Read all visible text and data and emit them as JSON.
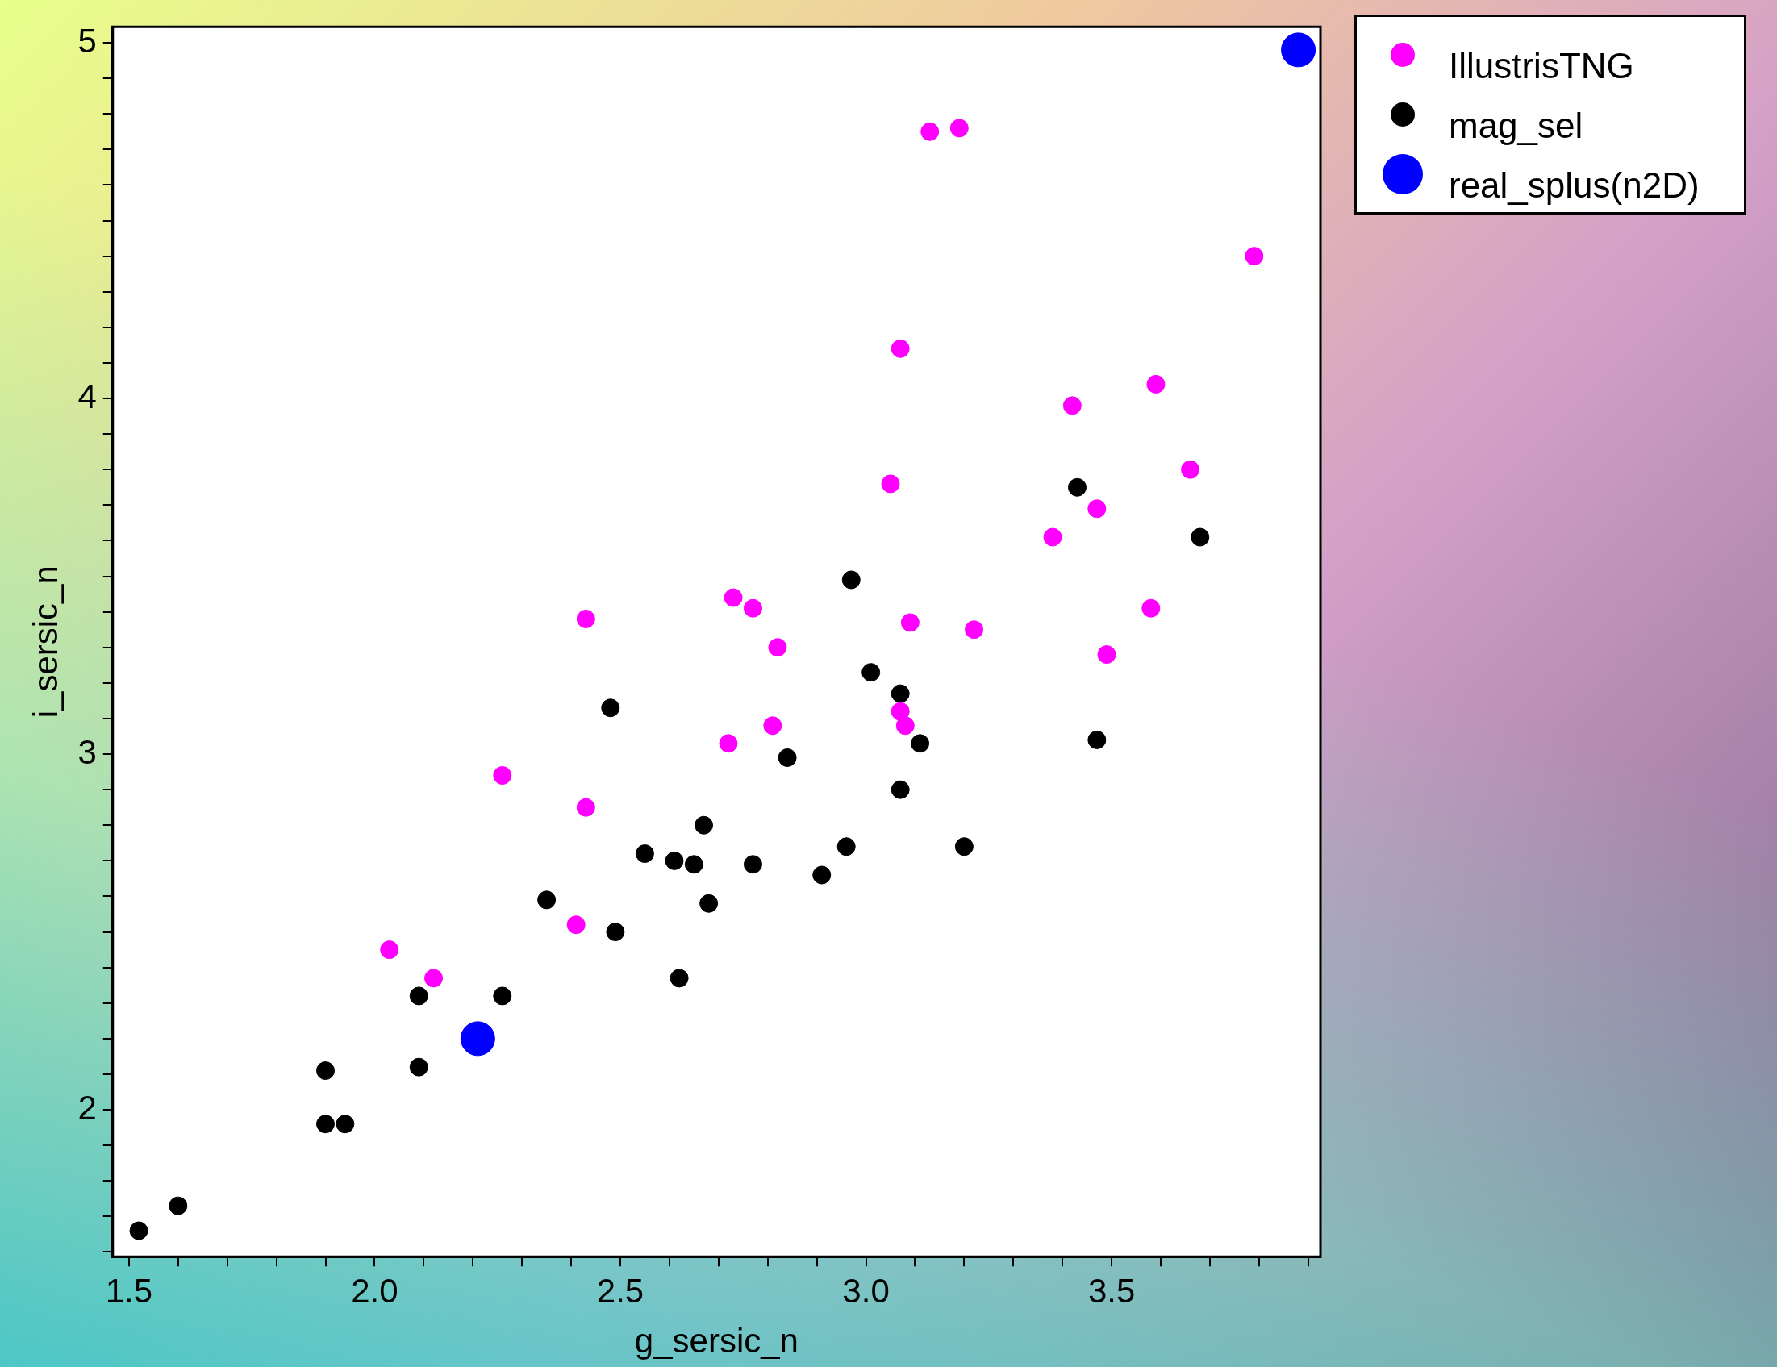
{
  "chart_data": {
    "type": "scatter",
    "xlabel": "g_sersic_n",
    "ylabel": "i_sersic_n",
    "xlim": [
      1.467,
      3.925
    ],
    "ylim": [
      1.587,
      5.045
    ],
    "xticks": [
      {
        "value": 1.5,
        "label": "1.5"
      },
      {
        "value": 1.6,
        "label": null
      },
      {
        "value": 1.7,
        "label": null
      },
      {
        "value": 1.8,
        "label": null
      },
      {
        "value": 1.9,
        "label": null
      },
      {
        "value": 2,
        "label": "2.0"
      },
      {
        "value": 2.1,
        "label": null
      },
      {
        "value": 2.2,
        "label": null
      },
      {
        "value": 2.3,
        "label": null
      },
      {
        "value": 2.4,
        "label": null
      },
      {
        "value": 2.5,
        "label": "2.5"
      },
      {
        "value": 2.6,
        "label": null
      },
      {
        "value": 2.7,
        "label": null
      },
      {
        "value": 2.8,
        "label": null
      },
      {
        "value": 2.9,
        "label": null
      },
      {
        "value": 3,
        "label": "3.0"
      },
      {
        "value": 3.1,
        "label": null
      },
      {
        "value": 3.2,
        "label": null
      },
      {
        "value": 3.3,
        "label": null
      },
      {
        "value": 3.4,
        "label": null
      },
      {
        "value": 3.5,
        "label": "3.5"
      },
      {
        "value": 3.6,
        "label": null
      },
      {
        "value": 3.7,
        "label": null
      },
      {
        "value": 3.8,
        "label": null
      },
      {
        "value": 3.9,
        "label": null
      }
    ],
    "yticks": [
      {
        "value": 1.6,
        "label": null
      },
      {
        "value": 1.7,
        "label": null
      },
      {
        "value": 1.8,
        "label": null
      },
      {
        "value": 1.9,
        "label": null
      },
      2,
      {
        "value": 2.1,
        "label": null
      },
      {
        "value": 2.2,
        "label": null
      },
      {
        "value": 2.3,
        "label": null
      },
      {
        "value": 2.4,
        "label": null
      },
      {
        "value": 2.5,
        "label": null
      },
      {
        "value": 2.6,
        "label": null
      },
      {
        "value": 2.7,
        "label": null
      },
      {
        "value": 2.8,
        "label": null
      },
      {
        "value": 2.9,
        "label": null
      },
      3,
      {
        "value": 3.1,
        "label": null
      },
      {
        "value": 3.2,
        "label": null
      },
      {
        "value": 3.3,
        "label": null
      },
      {
        "value": 3.4,
        "label": null
      },
      {
        "value": 3.5,
        "label": null
      },
      {
        "value": 3.6,
        "label": null
      },
      {
        "value": 3.7,
        "label": null
      },
      {
        "value": 3.8,
        "label": null
      },
      {
        "value": 3.9,
        "label": null
      },
      4,
      {
        "value": 4.1,
        "label": null
      },
      {
        "value": 4.2,
        "label": null
      },
      {
        "value": 4.3,
        "label": null
      },
      {
        "value": 4.4,
        "label": null
      },
      {
        "value": 4.5,
        "label": null
      },
      {
        "value": 4.6,
        "label": null
      },
      {
        "value": 4.7,
        "label": null
      },
      {
        "value": 4.8,
        "label": null
      },
      {
        "value": 4.9,
        "label": null
      },
      5
    ],
    "grid": false,
    "legend": "top right",
    "marker": "circle",
    "series": [
      {
        "name": "IllustrisTNG",
        "color": "#ff00ff",
        "x": [
          3.13,
          3.19,
          3.79,
          3.07,
          3.59,
          3.42,
          3.66,
          3.05,
          3.47,
          3.38,
          2.43,
          2.73,
          2.77,
          3.09,
          3.22,
          3.58,
          2.82,
          3.49,
          3.07,
          3.08,
          2.81,
          2.72,
          2.26,
          2.43,
          2.41,
          2.03,
          2.12
        ],
        "values": [
          4.75,
          4.76,
          4.4,
          4.14,
          4.04,
          3.98,
          3.8,
          3.76,
          3.69,
          3.61,
          3.38,
          3.44,
          3.41,
          3.37,
          3.35,
          3.41,
          3.3,
          3.28,
          3.12,
          3.08,
          3.08,
          3.03,
          2.94,
          2.85,
          2.52,
          2.45,
          2.37
        ]
      },
      {
        "name": "mag_sel",
        "color": "#000000",
        "x": [
          1.52,
          1.6,
          1.9,
          1.94,
          1.9,
          2.09,
          2.09,
          2.26,
          2.35,
          2.48,
          2.49,
          2.55,
          2.61,
          2.65,
          2.62,
          2.67,
          2.68,
          2.77,
          2.84,
          2.91,
          2.96,
          2.97,
          3.01,
          3.07,
          3.11,
          3.07,
          3.2,
          3.43,
          3.47,
          3.68
        ],
        "values": [
          1.66,
          1.73,
          1.96,
          1.96,
          2.11,
          2.12,
          2.32,
          2.32,
          2.59,
          3.13,
          2.5,
          2.72,
          2.7,
          2.69,
          2.37,
          2.8,
          2.58,
          2.69,
          2.99,
          2.66,
          2.74,
          3.49,
          3.23,
          3.17,
          3.03,
          2.9,
          2.74,
          3.75,
          3.04,
          3.61
        ]
      },
      {
        "name": "real_splus(n2D)",
        "color": "#0000ff",
        "x": [
          2.21,
          3.88
        ],
        "values": [
          2.2,
          4.98
        ]
      }
    ]
  }
}
